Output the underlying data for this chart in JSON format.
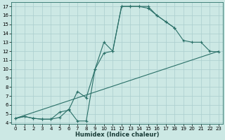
{
  "xlabel": "Humidex (Indice chaleur)",
  "line_color": "#2a7068",
  "bg_color": "#cce8e4",
  "grid_color": "#aacece",
  "xlim": [
    -0.5,
    23.5
  ],
  "ylim": [
    3.9,
    17.5
  ],
  "xticks": [
    0,
    1,
    2,
    3,
    4,
    5,
    6,
    7,
    8,
    9,
    10,
    11,
    12,
    13,
    14,
    15,
    16,
    17,
    18,
    19,
    20,
    21,
    22,
    23
  ],
  "yticks": [
    4,
    5,
    6,
    7,
    8,
    9,
    10,
    11,
    12,
    13,
    14,
    15,
    16,
    17
  ],
  "line1_x": [
    0,
    1,
    2,
    3,
    4,
    5,
    6,
    7,
    8,
    9,
    10,
    11,
    12,
    13,
    14,
    15,
    16,
    17,
    18
  ],
  "line1_y": [
    4.5,
    4.7,
    4.5,
    4.4,
    4.4,
    4.6,
    5.5,
    4.2,
    4.2,
    10.0,
    11.8,
    12.0,
    17.0,
    17.0,
    17.0,
    16.8,
    16.0,
    15.3,
    14.6
  ],
  "line2_x": [
    0,
    1,
    2,
    3,
    4,
    5,
    6,
    7,
    8,
    9,
    10,
    11,
    12,
    13,
    14,
    15,
    16,
    17,
    18,
    19,
    20,
    21,
    22,
    23
  ],
  "line2_y": [
    4.5,
    4.7,
    4.5,
    4.4,
    4.4,
    5.2,
    5.4,
    7.5,
    6.8,
    10.0,
    13.0,
    12.0,
    17.0,
    17.0,
    17.0,
    17.0,
    16.0,
    15.3,
    14.6,
    13.2,
    13.0,
    13.0,
    12.0,
    11.9
  ],
  "line3_x": [
    0,
    23
  ],
  "line3_y": [
    4.5,
    12.0
  ]
}
